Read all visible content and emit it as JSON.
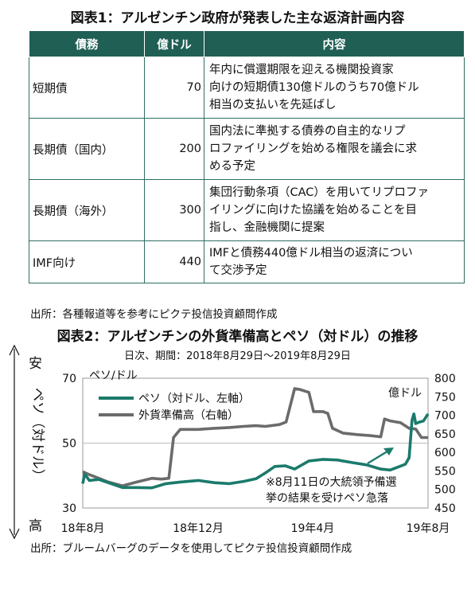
{
  "fig1": {
    "title": "図表1：アルゼンチン政府が発表した主な返済計画内容",
    "headers": [
      "債務",
      "億ドル",
      "内容"
    ],
    "rows": [
      {
        "name": "短期債",
        "amount": "70",
        "lines": [
          "年内に償還期限を迎える機関投資家",
          "向けの短期債130億ドルのうち70億ドル",
          "相当の支払いを先延ばし"
        ]
      },
      {
        "name": "長期債（国内）",
        "amount": "200",
        "lines": [
          "国内法に準拠する債券の自主的なリプ",
          "ロファイリングを始める権限を議会に求",
          "める予定"
        ]
      },
      {
        "name": "長期債（海外）",
        "amount": "300",
        "lines": [
          "集団行動条項（CAC）を用いてリプロファ",
          "イリングに向けた協議を始めることを目",
          "指し、金融機関に提案"
        ]
      },
      {
        "name": "IMF向け",
        "amount": "440",
        "lines": [
          "IMFと債務440億ドル相当の返済につい",
          "て交渉予定"
        ]
      }
    ],
    "source": "出所：各種報道等を参考にピクテ投信投資顧問作成"
  },
  "fig2": {
    "title": "図表2：アルゼンチンの外貨準備高とペソ（対ドル）の推移",
    "subtitle": "日次、期間：2018年8月29日～2019年8月29日",
    "source": "出所：ブルームバーグのデータを使用してピクテ投信投資顧問作成",
    "left_axis_label": "ペソ（対ドル）",
    "top_label": "安",
    "bottom_label": "高",
    "left_unit": "ペソ/ドル",
    "right_unit": "億ドル",
    "annotation": [
      "※8月11日の大統領予備選",
      "挙の結果を受けペソ急落"
    ]
  },
  "chart_data": {
    "type": "line",
    "x_tick_labels": [
      "18年8月",
      "18年12月",
      "19年4月",
      "19年8月"
    ],
    "x_ticks": [
      "2018-08-29",
      "2018-12-29",
      "2019-04-29",
      "2019-08-29"
    ],
    "xlim": [
      "2018-08-29",
      "2019-08-29"
    ],
    "left_axis": {
      "ticks": [
        70,
        50,
        30
      ],
      "ylim": [
        30,
        70
      ],
      "inverted": true
    },
    "right_axis": {
      "ticks": [
        800,
        750,
        700,
        650,
        600,
        550,
        500,
        450
      ],
      "ylim": [
        450,
        800
      ]
    },
    "legend_position": "top-left",
    "series": [
      {
        "name": "ペソ（対ドル、左軸）",
        "axis": "left",
        "color": "#1b7a6b",
        "points": [
          [
            "2018-08-29",
            37.5
          ],
          [
            "2018-08-31",
            40.5
          ],
          [
            "2018-09-05",
            38.5
          ],
          [
            "2018-09-15",
            38.8
          ],
          [
            "2018-09-25",
            37.8
          ],
          [
            "2018-10-10",
            36.3
          ],
          [
            "2018-10-25",
            36.3
          ],
          [
            "2018-11-10",
            36.2
          ],
          [
            "2018-11-25",
            37.5
          ],
          [
            "2018-12-10",
            38.0
          ],
          [
            "2018-12-29",
            38.5
          ],
          [
            "2019-01-15",
            37.8
          ],
          [
            "2019-01-31",
            37.5
          ],
          [
            "2019-02-15",
            38.2
          ],
          [
            "2019-02-28",
            39.0
          ],
          [
            "2019-03-10",
            40.8
          ],
          [
            "2019-03-20",
            42.8
          ],
          [
            "2019-03-31",
            43.0
          ],
          [
            "2019-04-10",
            42.0
          ],
          [
            "2019-04-25",
            44.5
          ],
          [
            "2019-05-10",
            45.0
          ],
          [
            "2019-05-25",
            44.8
          ],
          [
            "2019-06-10",
            44.0
          ],
          [
            "2019-06-25",
            43.3
          ],
          [
            "2019-07-10",
            42.0
          ],
          [
            "2019-07-20",
            41.7
          ],
          [
            "2019-08-05",
            43.5
          ],
          [
            "2019-08-09",
            45.5
          ],
          [
            "2019-08-12",
            57.0
          ],
          [
            "2019-08-14",
            59.0
          ],
          [
            "2019-08-16",
            56.0
          ],
          [
            "2019-08-20",
            56.5
          ],
          [
            "2019-08-24",
            56.8
          ],
          [
            "2019-08-29",
            59.0
          ]
        ]
      },
      {
        "name": "外貨準備高（右軸）",
        "axis": "right",
        "color": "#6b6b6b",
        "points": [
          [
            "2018-08-29",
            548
          ],
          [
            "2018-09-05",
            540
          ],
          [
            "2018-09-15",
            530
          ],
          [
            "2018-09-25",
            520
          ],
          [
            "2018-10-10",
            510
          ],
          [
            "2018-10-25",
            520
          ],
          [
            "2018-11-10",
            530
          ],
          [
            "2018-11-20",
            528
          ],
          [
            "2018-11-28",
            530
          ],
          [
            "2018-12-03",
            640
          ],
          [
            "2018-12-10",
            662
          ],
          [
            "2018-12-29",
            662
          ],
          [
            "2019-01-15",
            665
          ],
          [
            "2019-01-31",
            667
          ],
          [
            "2019-02-15",
            670
          ],
          [
            "2019-02-28",
            672
          ],
          [
            "2019-03-10",
            670
          ],
          [
            "2019-03-25",
            675
          ],
          [
            "2019-04-01",
            682
          ],
          [
            "2019-04-10",
            772
          ],
          [
            "2019-04-15",
            770
          ],
          [
            "2019-04-25",
            762
          ],
          [
            "2019-04-30",
            710
          ],
          [
            "2019-05-10",
            710
          ],
          [
            "2019-05-15",
            705
          ],
          [
            "2019-05-20",
            665
          ],
          [
            "2019-05-31",
            652
          ],
          [
            "2019-06-15",
            648
          ],
          [
            "2019-06-30",
            645
          ],
          [
            "2019-07-10",
            642
          ],
          [
            "2019-07-14",
            690
          ],
          [
            "2019-07-20",
            685
          ],
          [
            "2019-07-31",
            680
          ],
          [
            "2019-08-09",
            665
          ],
          [
            "2019-08-16",
            663
          ],
          [
            "2019-08-22",
            640
          ],
          [
            "2019-08-29",
            640
          ]
        ]
      }
    ]
  }
}
